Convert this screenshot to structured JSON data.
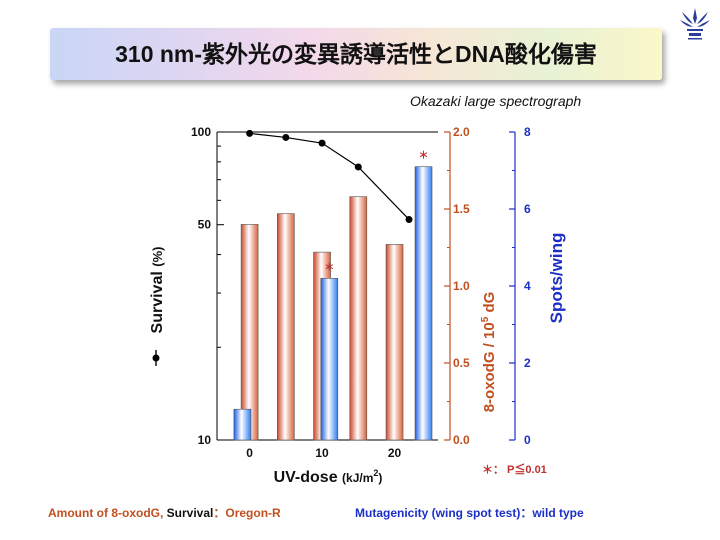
{
  "slide": {
    "title": "310 nm-紫外光の変異誘導活性とDNA酸化傷害",
    "source_note": "Okazaki large spectrograph",
    "significance_note": "＊： P≦0.01",
    "footer_left_a": "Amount of 8-oxodG, ",
    "footer_left_b": "Survival",
    "footer_left_c": "：Oregon-R",
    "footer_right": "Mutagenicity (wing spot test)：wild type",
    "logo_icon": "university-crest-icon"
  },
  "chart_data": {
    "type": "bar",
    "xlabel": "UV-dose",
    "xlabel_unit": "(kJ/m",
    "xlabel_unit_sup": "2",
    "xlabel_unit_close": ")",
    "x_ticks": [
      0,
      10,
      20
    ],
    "xlim": [
      -4.5,
      26
    ],
    "left_axis": {
      "label": "Survival",
      "label_unit": "(%)",
      "scale": "log",
      "lim": [
        10,
        100
      ],
      "tick_labels": [
        "100",
        "50",
        "10"
      ],
      "tick_values": [
        100,
        50,
        10
      ],
      "color": "#111111"
    },
    "mid_axis": {
      "label_main": "8-oxodG / 10",
      "label_sup": "5",
      "label_end": " dG",
      "lim": [
        0,
        2.0
      ],
      "tick_labels": [
        "2.0",
        "1.5",
        "1.0",
        "0.5",
        "0.0"
      ],
      "tick_values": [
        2.0,
        1.5,
        1.0,
        0.5,
        0.0
      ],
      "color": "#c0501f"
    },
    "right_axis": {
      "label": "Spots/wing",
      "lim": [
        0,
        8
      ],
      "tick_labels": [
        "8",
        "6",
        "4",
        "2",
        "0"
      ],
      "tick_values": [
        8,
        6,
        4,
        2,
        0
      ],
      "color": "#1c2fc6"
    },
    "series": [
      {
        "name": "Survival",
        "kind": "line",
        "axis": "left",
        "color": "#000000",
        "x": [
          0,
          5,
          10,
          15,
          22
        ],
        "y": [
          99,
          96,
          92,
          77,
          52
        ]
      },
      {
        "name": "8-oxodG",
        "kind": "bar",
        "axis": "mid",
        "color": "#d9623a",
        "x": [
          0,
          5,
          10,
          15,
          20
        ],
        "y": [
          1.4,
          1.47,
          1.22,
          1.58,
          1.27
        ]
      },
      {
        "name": "Spots/wing",
        "kind": "bar",
        "axis": "right",
        "color": "#2f7df5",
        "x": [
          -1,
          11,
          24
        ],
        "y": [
          0.8,
          4.2,
          7.1
        ]
      }
    ],
    "significance_markers": [
      {
        "series": "Spots/wing",
        "x": 11,
        "label": "＊"
      },
      {
        "series": "Spots/wing",
        "x": 24,
        "label": "＊"
      }
    ]
  }
}
